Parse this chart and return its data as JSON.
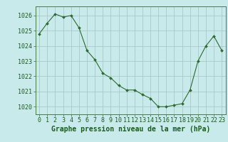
{
  "x": [
    0,
    1,
    2,
    3,
    4,
    5,
    6,
    7,
    8,
    9,
    10,
    11,
    12,
    13,
    14,
    15,
    16,
    17,
    18,
    19,
    20,
    21,
    22,
    23
  ],
  "y": [
    1024.8,
    1025.5,
    1026.1,
    1025.9,
    1026.0,
    1025.2,
    1023.7,
    1023.1,
    1022.2,
    1021.9,
    1021.4,
    1021.1,
    1021.1,
    1020.8,
    1020.55,
    1020.0,
    1020.0,
    1020.1,
    1020.2,
    1021.1,
    1023.0,
    1024.0,
    1024.65,
    1023.7
  ],
  "line_color": "#2d6a2d",
  "marker": "D",
  "marker_size": 2.0,
  "bg_color": "#c8eaea",
  "grid_color": "#aac8c8",
  "xlabel": "Graphe pression niveau de la mer (hPa)",
  "xlabel_color": "#1a5c1a",
  "xlabel_fontsize": 7.0,
  "tick_color": "#1a5c1a",
  "tick_fontsize": 6.0,
  "ylim": [
    1019.5,
    1026.6
  ],
  "yticks": [
    1020,
    1021,
    1022,
    1023,
    1024,
    1025,
    1026
  ],
  "xlim": [
    -0.5,
    23.5
  ],
  "xticks": [
    0,
    1,
    2,
    3,
    4,
    5,
    6,
    7,
    8,
    9,
    10,
    11,
    12,
    13,
    14,
    15,
    16,
    17,
    18,
    19,
    20,
    21,
    22,
    23
  ]
}
